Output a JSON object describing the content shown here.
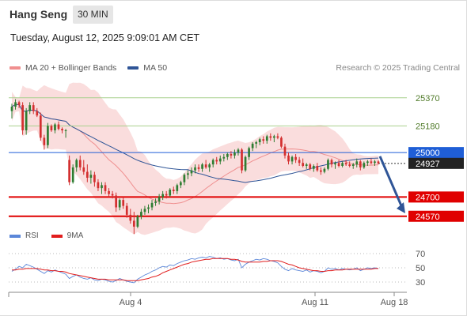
{
  "header": {
    "title": "Hang Seng",
    "interval": "30 MIN"
  },
  "datetime": "Tuesday, August 12, 2025 9:09:01 AM CET",
  "legend": [
    {
      "label": "MA 20 + Bollinger Bands",
      "color": "#f08f8f"
    },
    {
      "label": "MA 50",
      "color": "#2f5597"
    }
  ],
  "credit": "Research © 2025 Trading Central",
  "rsi_legend": [
    {
      "label": "RSI",
      "color": "#5b87d9"
    },
    {
      "label": "9MA",
      "color": "#e11d1d"
    }
  ],
  "colors": {
    "up": "#2e7d32",
    "down": "#d32f2f",
    "bollinger": "#f7c6c6",
    "ma20": "#ef8f8f",
    "ma50": "#2f5597",
    "resistance": "#a8d08d",
    "support": "#e00000",
    "pivot": "#1f5ed6",
    "arrow": "#2f5597"
  },
  "chart_data": {
    "type": "candlestick",
    "title": "Hang Seng",
    "ylim": [
      24510,
      25470
    ],
    "x_labels": [
      "Aug 4",
      "Aug 11",
      "Aug 18"
    ],
    "levels": [
      {
        "value": 25370,
        "label": "25370",
        "kind": "resistance"
      },
      {
        "value": 25180,
        "label": "25180",
        "kind": "resistance"
      },
      {
        "value": 25000,
        "label": "25000",
        "kind": "pivot"
      },
      {
        "value": 24700,
        "label": "24700",
        "kind": "support"
      },
      {
        "value": 24570,
        "label": "24570",
        "kind": "support"
      }
    ],
    "last_price": 24927,
    "candles": [
      [
        25280,
        25330,
        25230,
        25310
      ],
      [
        25310,
        25360,
        25290,
        25340
      ],
      [
        25340,
        25350,
        25300,
        25320
      ],
      [
        25320,
        25340,
        25120,
        25150
      ],
      [
        25150,
        25300,
        25120,
        25280
      ],
      [
        25280,
        25340,
        25260,
        25320
      ],
      [
        25320,
        25340,
        25260,
        25280
      ],
      [
        25280,
        25300,
        25240,
        25250
      ],
      [
        25250,
        25270,
        25080,
        25100
      ],
      [
        25100,
        25120,
        25020,
        25050
      ],
      [
        25050,
        25200,
        25030,
        25180
      ],
      [
        25180,
        25190,
        25140,
        25150
      ],
      [
        25150,
        25200,
        25130,
        25190
      ],
      [
        25190,
        25210,
        25150,
        25160
      ],
      [
        25160,
        25170,
        25130,
        25150
      ],
      [
        25150,
        25160,
        25100,
        25150
      ],
      [
        24950,
        24980,
        24780,
        24800
      ],
      [
        24800,
        24920,
        24790,
        24900
      ],
      [
        24900,
        24960,
        24870,
        24950
      ],
      [
        24950,
        24980,
        24880,
        24900
      ],
      [
        24900,
        24950,
        24850,
        24870
      ],
      [
        24870,
        24920,
        24800,
        24830
      ],
      [
        24830,
        24880,
        24790,
        24850
      ],
      [
        24850,
        24870,
        24770,
        24800
      ],
      [
        24800,
        24820,
        24740,
        24760
      ],
      [
        24760,
        24800,
        24720,
        24780
      ],
      [
        24780,
        24800,
        24720,
        24740
      ],
      [
        24740,
        24760,
        24700,
        24720
      ],
      [
        24720,
        24740,
        24690,
        24710
      ],
      [
        24710,
        24730,
        24600,
        24630
      ],
      [
        24630,
        24690,
        24610,
        24680
      ],
      [
        24680,
        24700,
        24620,
        24640
      ],
      [
        24640,
        24660,
        24560,
        24580
      ],
      [
        24580,
        24620,
        24520,
        24540
      ],
      [
        24540,
        24600,
        24450,
        24500
      ],
      [
        24500,
        24580,
        24490,
        24570
      ],
      [
        24570,
        24620,
        24550,
        24600
      ],
      [
        24600,
        24640,
        24580,
        24620
      ],
      [
        24620,
        24650,
        24590,
        24630
      ],
      [
        24630,
        24680,
        24610,
        24660
      ],
      [
        24660,
        24690,
        24640,
        24670
      ],
      [
        24670,
        24720,
        24650,
        24700
      ],
      [
        24700,
        24740,
        24680,
        24720
      ],
      [
        24720,
        24740,
        24690,
        24710
      ],
      [
        24710,
        24760,
        24700,
        24750
      ],
      [
        24750,
        24770,
        24720,
        24740
      ],
      [
        24740,
        24790,
        24720,
        24780
      ],
      [
        24780,
        24810,
        24760,
        24800
      ],
      [
        24800,
        24860,
        24780,
        24850
      ],
      [
        24850,
        24880,
        24820,
        24860
      ],
      [
        24860,
        24900,
        24840,
        24880
      ],
      [
        24880,
        24920,
        24860,
        24900
      ],
      [
        24900,
        24920,
        24870,
        24890
      ],
      [
        24890,
        24930,
        24870,
        24920
      ],
      [
        24920,
        24950,
        24890,
        24900
      ],
      [
        24900,
        24930,
        24870,
        24920
      ],
      [
        24920,
        24960,
        24900,
        24950
      ],
      [
        24950,
        24970,
        24920,
        24940
      ],
      [
        24940,
        24980,
        24920,
        24960
      ],
      [
        24960,
        24990,
        24940,
        24970
      ],
      [
        24970,
        25000,
        24950,
        24990
      ],
      [
        24990,
        25010,
        24960,
        24980
      ],
      [
        24980,
        25020,
        24960,
        25000
      ],
      [
        25000,
        25030,
        24980,
        25020
      ],
      [
        25020,
        25030,
        24860,
        24880
      ],
      [
        24880,
        24980,
        24870,
        24970
      ],
      [
        24970,
        25040,
        24950,
        25030
      ],
      [
        25030,
        25070,
        25010,
        25060
      ],
      [
        25060,
        25080,
        25030,
        25070
      ],
      [
        25070,
        25100,
        25050,
        25090
      ],
      [
        25090,
        25110,
        25060,
        25080
      ],
      [
        25080,
        25120,
        25060,
        25110
      ],
      [
        25110,
        25130,
        25080,
        25100
      ],
      [
        25100,
        25120,
        25070,
        25110
      ],
      [
        25110,
        25130,
        25090,
        25100
      ],
      [
        25100,
        25110,
        25030,
        25040
      ],
      [
        25040,
        25060,
        24960,
        24980
      ],
      [
        24980,
        25000,
        24920,
        24940
      ],
      [
        24940,
        24980,
        24920,
        24970
      ],
      [
        24970,
        24990,
        24930,
        24950
      ],
      [
        24950,
        24970,
        24910,
        24930
      ],
      [
        24930,
        24960,
        24900,
        24910
      ],
      [
        24910,
        24930,
        24890,
        24920
      ],
      [
        24920,
        24930,
        24880,
        24890
      ],
      [
        24890,
        24920,
        24870,
        24910
      ],
      [
        24910,
        24930,
        24870,
        24880
      ],
      [
        24880,
        24900,
        24850,
        24870
      ],
      [
        24870,
        24900,
        24860,
        24890
      ],
      [
        24890,
        24960,
        24880,
        24950
      ],
      [
        24950,
        24960,
        24900,
        24920
      ],
      [
        24920,
        24940,
        24890,
        24930
      ],
      [
        24930,
        24950,
        24900,
        24910
      ],
      [
        24910,
        24940,
        24900,
        24930
      ],
      [
        24930,
        24950,
        24910,
        24920
      ],
      [
        24920,
        24940,
        24900,
        24910
      ],
      [
        24910,
        24930,
        24890,
        24920
      ],
      [
        24920,
        24960,
        24900,
        24940
      ],
      [
        24940,
        24950,
        24880,
        24900
      ],
      [
        24900,
        24940,
        24890,
        24930
      ],
      [
        24930,
        24950,
        24910,
        24940
      ],
      [
        24940,
        24960,
        24920,
        24930
      ],
      [
        24930,
        24950,
        24910,
        24940
      ],
      [
        24940,
        24950,
        24920,
        24927
      ]
    ],
    "rsi": {
      "levels": [
        70,
        50,
        30
      ],
      "values": [
        45,
        48,
        52,
        50,
        55,
        53,
        51,
        48,
        45,
        42,
        46,
        44,
        47,
        45,
        43,
        41,
        35,
        38,
        40,
        37,
        35,
        34,
        36,
        33,
        32,
        34,
        33,
        31,
        30,
        32,
        35,
        33,
        31,
        30,
        29,
        34,
        37,
        40,
        42,
        45,
        47,
        50,
        52,
        51,
        54,
        53,
        56,
        58,
        60,
        61,
        63,
        62,
        64,
        65,
        64,
        66,
        65,
        63,
        64,
        62,
        63,
        61,
        60,
        62,
        50,
        55,
        58,
        60,
        62,
        61,
        63,
        62,
        60,
        59,
        57,
        52,
        48,
        46,
        49,
        47,
        46,
        45,
        47,
        44,
        46,
        45,
        43,
        45,
        50,
        48,
        49,
        47,
        49,
        48,
        47,
        48,
        50,
        46,
        48,
        50,
        49,
        50,
        49
      ],
      "ma": [
        47,
        47,
        48,
        48,
        49,
        49,
        49,
        49,
        48,
        47,
        47,
        46,
        46,
        45,
        45,
        44,
        42,
        41,
        40,
        39,
        38,
        37,
        36,
        35,
        34,
        34,
        34,
        33,
        33,
        33,
        33,
        33,
        32,
        32,
        32,
        32,
        33,
        34,
        35,
        37,
        38,
        40,
        43,
        45,
        47,
        49,
        51,
        53,
        55,
        56,
        58,
        59,
        60,
        61,
        62,
        62,
        63,
        63,
        63,
        63,
        63,
        62,
        62,
        61,
        59,
        58,
        58,
        58,
        58,
        58,
        59,
        59,
        60,
        60,
        60,
        59,
        57,
        55,
        54,
        52,
        50,
        49,
        48,
        47,
        46,
        46,
        45,
        45,
        46,
        46,
        47,
        47,
        47,
        48,
        48,
        48,
        48,
        48,
        48,
        48,
        48,
        49,
        49
      ]
    }
  }
}
